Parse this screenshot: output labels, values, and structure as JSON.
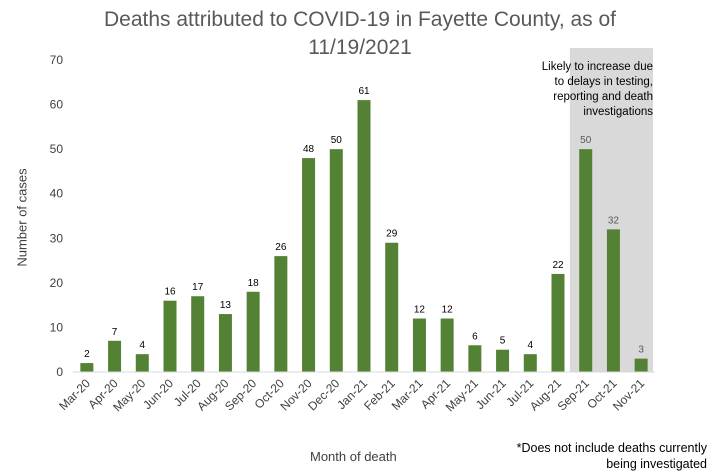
{
  "chart_data": {
    "type": "bar",
    "title_line1": "Deaths attributed to COVID-19 in Fayette County, as of",
    "title_line2": "11/19/2021",
    "xlabel": "Month of death",
    "ylabel": "Number of cases",
    "ylim": [
      0,
      70
    ],
    "yticks": [
      0,
      10,
      20,
      30,
      40,
      50,
      60,
      70
    ],
    "categories": [
      "Mar-20",
      "Apr-20",
      "May-20",
      "Jun-20",
      "Jul-20",
      "Aug-20",
      "Sep-20",
      "Oct-20",
      "Nov-20",
      "Dec-20",
      "Jan-21",
      "Feb-21",
      "Mar-21",
      "Apr-21",
      "May-21",
      "Jun-21",
      "Jul-21",
      "Aug-21",
      "Sep-21",
      "Oct-21",
      "Nov-21"
    ],
    "values": [
      2,
      7,
      4,
      16,
      17,
      13,
      18,
      26,
      48,
      50,
      61,
      29,
      12,
      12,
      6,
      5,
      4,
      22,
      50,
      32,
      3
    ],
    "bar_color": "#548235",
    "shade_color": "#d9d9d9",
    "shaded_categories": [
      "Sep-21",
      "Oct-21",
      "Nov-21"
    ],
    "shade_note": [
      "Likely to increase due",
      "to delays in testing,",
      "reporting and death",
      "investigations"
    ],
    "footnote": [
      "*Does not include deaths currently",
      "being investigated"
    ],
    "grid": false,
    "legend": "none"
  }
}
